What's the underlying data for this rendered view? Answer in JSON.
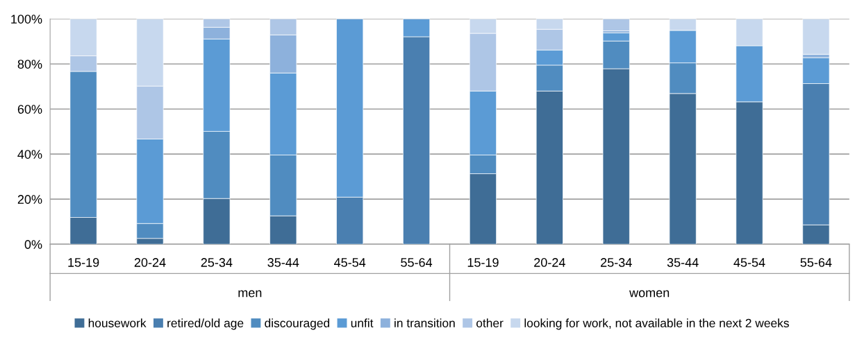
{
  "chart_data": {
    "type": "bar",
    "stacked": true,
    "categories": [
      "15-19",
      "20-24",
      "25-34",
      "35-44",
      "45-54",
      "55-64",
      "15-19",
      "20-24",
      "25-34",
      "35-44",
      "45-54",
      "55-64"
    ],
    "annotations": [
      "men",
      "women"
    ],
    "series": [
      {
        "name": "housework",
        "color": "#3f6d96",
        "values": [
          11.9,
          2.6,
          20.3,
          12.6,
          null,
          null,
          31.3,
          68.0,
          77.9,
          66.9,
          63.2,
          8.6
        ]
      },
      {
        "name": "retired/old age",
        "color": "#4a7fb0",
        "values": [
          null,
          null,
          null,
          null,
          20.9,
          92.1,
          null,
          null,
          null,
          null,
          null,
          62.7
        ]
      },
      {
        "name": "discouraged",
        "color": "#508cc0",
        "values": [
          64.8,
          6.6,
          29.8,
          27.0,
          null,
          null,
          8.3,
          11.5,
          12.3,
          13.6,
          null,
          null
        ]
      },
      {
        "name": "unfit",
        "color": "#5b9bd5",
        "values": [
          null,
          37.5,
          41.0,
          36.4,
          79.1,
          7.9,
          28.4,
          6.7,
          3.6,
          14.4,
          24.9,
          11.5
        ]
      },
      {
        "name": "in transition",
        "color": "#8db1dc",
        "values": [
          null,
          null,
          5.2,
          16.9,
          null,
          null,
          null,
          null,
          0.9,
          null,
          null,
          1.5
        ]
      },
      {
        "name": "other",
        "color": "#aec6e6",
        "values": [
          6.9,
          23.5,
          3.7,
          7.1,
          null,
          null,
          25.6,
          9.2,
          5.3,
          null,
          null,
          null
        ]
      },
      {
        "name": "looking for work, not available in the next 2 weeks",
        "color": "#c7d8ee",
        "values": [
          16.4,
          29.8,
          null,
          null,
          null,
          null,
          6.4,
          4.6,
          null,
          5.1,
          11.9,
          15.7
        ]
      }
    ],
    "ylim": [
      0,
      100
    ],
    "yticks": [
      {
        "value": 0,
        "label": "0%"
      },
      {
        "value": 20,
        "label": "20%"
      },
      {
        "value": 40,
        "label": "40%"
      },
      {
        "value": 60,
        "label": "60%"
      },
      {
        "value": 80,
        "label": "80%"
      },
      {
        "value": 100,
        "label": "100%"
      }
    ],
    "grid": "y",
    "legend": "bottom"
  }
}
